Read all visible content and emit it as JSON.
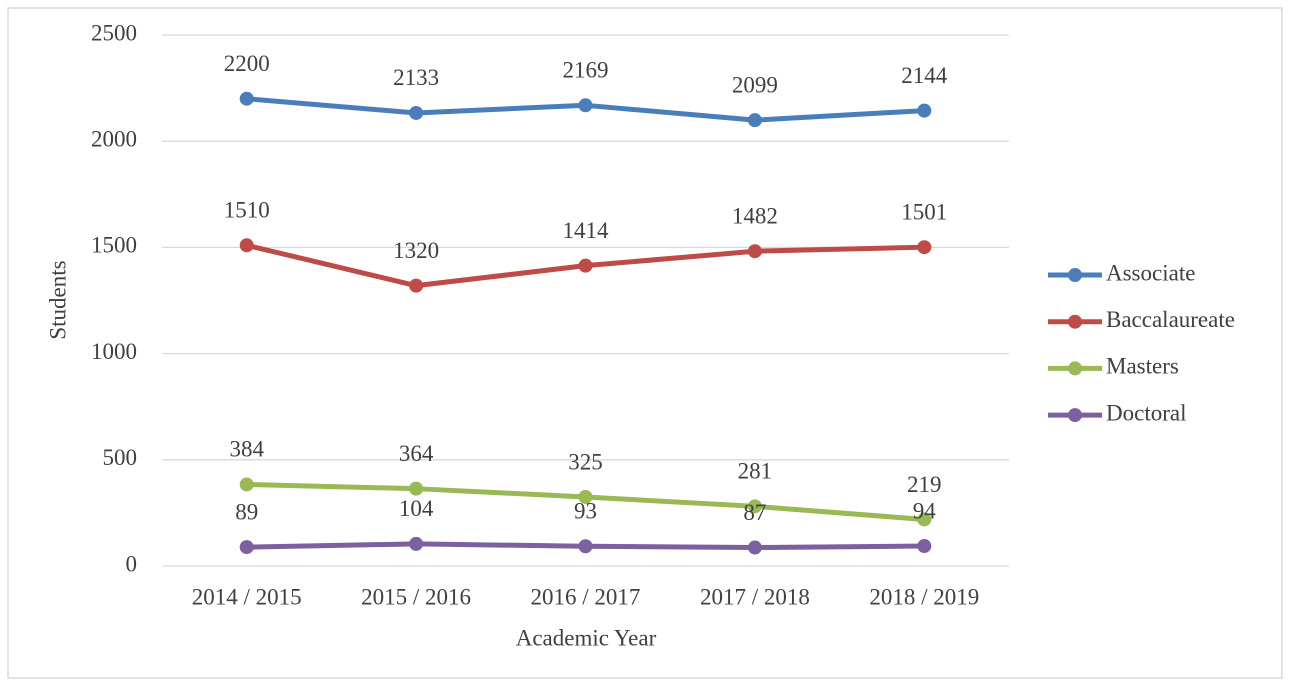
{
  "chart_data": {
    "type": "line",
    "x_label": "Academic Year",
    "y_label": "Students",
    "categories": [
      "2014 / 2015",
      "2015 / 2016",
      "2016 / 2017",
      "2017 / 2018",
      "2018 / 2019"
    ],
    "series": [
      {
        "name": "Associate",
        "color": "#4a7ebb",
        "values": [
          2200,
          2133,
          2169,
          2099,
          2144
        ]
      },
      {
        "name": "Baccalaureate",
        "color": "#be4b48",
        "values": [
          1510,
          1320,
          1414,
          1482,
          1501
        ]
      },
      {
        "name": "Masters",
        "color": "#98b954",
        "values": [
          384,
          364,
          325,
          281,
          219
        ]
      },
      {
        "name": "Doctoral",
        "color": "#7d60a0",
        "values": [
          89,
          104,
          93,
          87,
          94
        ]
      }
    ],
    "ylim": [
      0,
      2500
    ],
    "yticks": [
      0,
      500,
      1000,
      1500,
      2000,
      2500
    ],
    "grid": true,
    "legend": "right",
    "data_labels": true
  }
}
